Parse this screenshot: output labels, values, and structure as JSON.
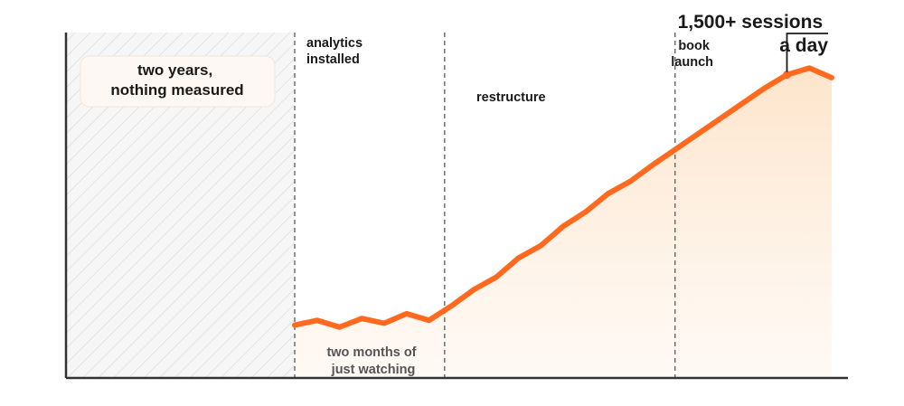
{
  "chart_data": {
    "type": "line",
    "title": "",
    "xlabel": "",
    "ylabel": "",
    "x": [
      0,
      1,
      2,
      3,
      4,
      5,
      6,
      7,
      8,
      9,
      10,
      11,
      12,
      13,
      14,
      15,
      16,
      17,
      18,
      19,
      20,
      21,
      22,
      23,
      24
    ],
    "series": [
      {
        "values": [
          5.5,
          6.0,
          5.3,
          6.2,
          5.7,
          6.7,
          6.0,
          7.5,
          9.2,
          10.5,
          12.5,
          13.8,
          15.8,
          17.3,
          19.2,
          20.5,
          22.2,
          23.8,
          25.4,
          27.0,
          28.6,
          30.2,
          31.6,
          32.3,
          31.3
        ]
      }
    ],
    "ylim": [
      0,
      36
    ],
    "xlim": [
      -9,
      25
    ],
    "grid": false,
    "colors": {
      "line": "#ff6a1f",
      "fill": "#fde7d0",
      "hatch": "#c8c8c8",
      "axis": "#333333",
      "divider": "#666666"
    },
    "regions": [
      {
        "label": "two years,\nnothing measured",
        "from": -9,
        "to": 0,
        "style": "hatched"
      }
    ],
    "markers": [
      {
        "x": 0,
        "label": "analytics\ninstalled"
      },
      {
        "x": 6.7,
        "label": "restructure"
      },
      {
        "x": 17,
        "label": "book\nlaunch"
      }
    ],
    "annotations": [
      {
        "label": "two months of\njust watching",
        "x": 3.2,
        "y": 1.8
      },
      {
        "label": "1,500+ sessions\na day",
        "x": 22,
        "y": 32.3
      }
    ]
  }
}
